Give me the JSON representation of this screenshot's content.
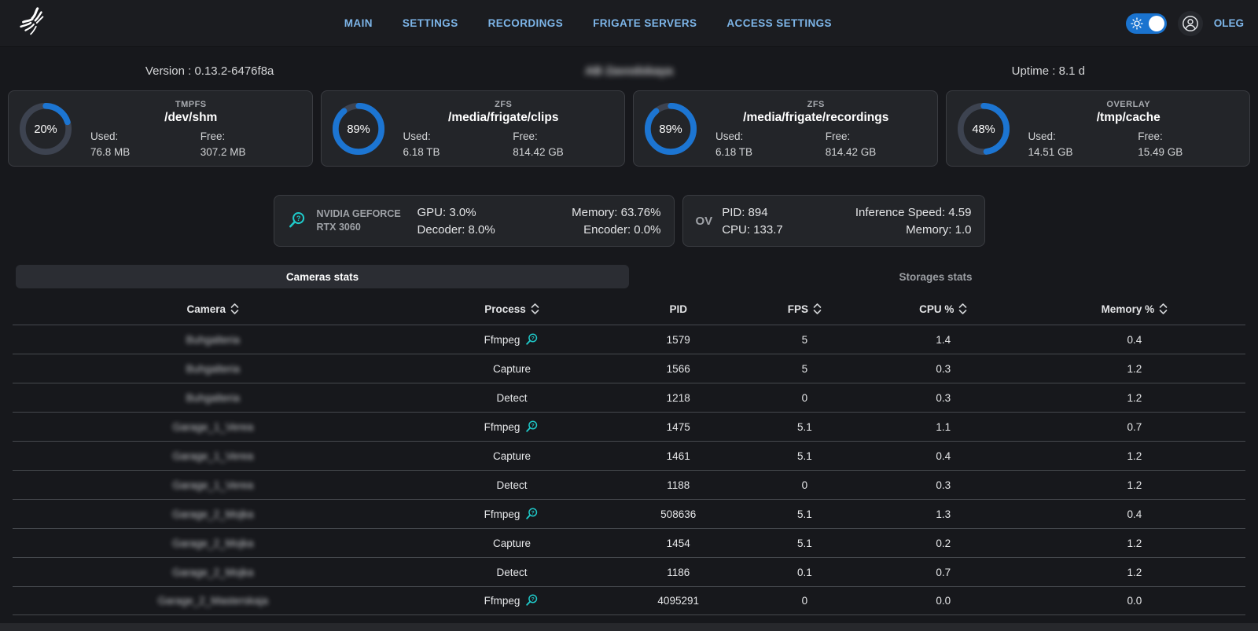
{
  "nav": {
    "items": [
      {
        "id": "main",
        "label": "MAIN"
      },
      {
        "id": "settings",
        "label": "SETTINGS"
      },
      {
        "id": "recordings",
        "label": "RECORDINGS"
      },
      {
        "id": "frigate-servers",
        "label": "FRIGATE SERVERS"
      },
      {
        "id": "access-settings",
        "label": "ACCESS SETTINGS"
      }
    ]
  },
  "user": {
    "name": "OLEG",
    "theme_toggle_on": true
  },
  "info_bar": {
    "version": "Version : 0.13.2-6476f8a",
    "server_name": "AB Zavodskaya",
    "server_name_blurred": true,
    "uptime": "Uptime : 8.1 d"
  },
  "storage_cards": [
    {
      "fs_type": "TMPFS",
      "mount": "/dev/shm",
      "percent": 20,
      "used_label": "Used:",
      "used": "76.8 MB",
      "free_label": "Free:",
      "free": "307.2 MB"
    },
    {
      "fs_type": "ZFS",
      "mount": "/media/frigate/clips",
      "percent": 89,
      "used_label": "Used:",
      "used": "6.18 TB",
      "free_label": "Free:",
      "free": "814.42 GB"
    },
    {
      "fs_type": "ZFS",
      "mount": "/media/frigate/recordings",
      "percent": 89,
      "used_label": "Used:",
      "used": "6.18 TB",
      "free_label": "Free:",
      "free": "814.42 GB"
    },
    {
      "fs_type": "OVERLAY",
      "mount": "/tmp/cache",
      "percent": 48,
      "used_label": "Used:",
      "used": "14.51 GB",
      "free_label": "Free:",
      "free": "15.49 GB"
    }
  ],
  "gpu_card": {
    "name_line1": "NVIDIA GEFORCE",
    "name_line2": "RTX 3060",
    "gpu": "GPU: 3.0%",
    "memory": "Memory: 63.76%",
    "decoder": "Decoder: 8.0%",
    "encoder": "Encoder: 0.0%"
  },
  "detector_card": {
    "label": "OV",
    "pid": "PID: 894",
    "inference": "Inference Speed: 4.59",
    "cpu": "CPU: 133.7",
    "memory": "Memory: 1.0"
  },
  "tabs": [
    {
      "id": "cameras",
      "label": "Cameras stats",
      "active": true
    },
    {
      "id": "storages",
      "label": "Storages stats",
      "active": false
    }
  ],
  "cameras_table": {
    "columns": [
      {
        "key": "camera",
        "label": "Camera",
        "sortable": true
      },
      {
        "key": "process",
        "label": "Process",
        "sortable": true
      },
      {
        "key": "pid",
        "label": "PID",
        "sortable": false
      },
      {
        "key": "fps",
        "label": "FPS",
        "sortable": true
      },
      {
        "key": "cpu",
        "label": "CPU %",
        "sortable": true
      },
      {
        "key": "memory",
        "label": "Memory %",
        "sortable": true
      }
    ],
    "rows": [
      {
        "camera": "Buhgalteria",
        "camera_blurred": true,
        "process": "Ffmpeg",
        "info_icon": true,
        "pid": "1579",
        "fps": "5",
        "cpu": "1.4",
        "memory": "0.4"
      },
      {
        "camera": "Buhgalteria",
        "camera_blurred": true,
        "process": "Capture",
        "info_icon": false,
        "pid": "1566",
        "fps": "5",
        "cpu": "0.3",
        "memory": "1.2"
      },
      {
        "camera": "Buhgalteria",
        "camera_blurred": true,
        "process": "Detect",
        "info_icon": false,
        "pid": "1218",
        "fps": "0",
        "cpu": "0.3",
        "memory": "1.2"
      },
      {
        "camera": "Garage_1_Verea",
        "camera_blurred": true,
        "process": "Ffmpeg",
        "info_icon": true,
        "pid": "1475",
        "fps": "5.1",
        "cpu": "1.1",
        "memory": "0.7"
      },
      {
        "camera": "Garage_1_Verea",
        "camera_blurred": true,
        "process": "Capture",
        "info_icon": false,
        "pid": "1461",
        "fps": "5.1",
        "cpu": "0.4",
        "memory": "1.2"
      },
      {
        "camera": "Garage_1_Verea",
        "camera_blurred": true,
        "process": "Detect",
        "info_icon": false,
        "pid": "1188",
        "fps": "0",
        "cpu": "0.3",
        "memory": "1.2"
      },
      {
        "camera": "Garage_2_Mojka",
        "camera_blurred": true,
        "process": "Ffmpeg",
        "info_icon": true,
        "pid": "508636",
        "fps": "5.1",
        "cpu": "1.3",
        "memory": "0.4"
      },
      {
        "camera": "Garage_2_Mojka",
        "camera_blurred": true,
        "process": "Capture",
        "info_icon": false,
        "pid": "1454",
        "fps": "5.1",
        "cpu": "0.2",
        "memory": "1.2"
      },
      {
        "camera": "Garage_2_Mojka",
        "camera_blurred": true,
        "process": "Detect",
        "info_icon": false,
        "pid": "1186",
        "fps": "0.1",
        "cpu": "0.7",
        "memory": "1.2"
      },
      {
        "camera": "Garage_2_Masterskaja",
        "camera_blurred": true,
        "process": "Ffmpeg",
        "info_icon": true,
        "pid": "4095291",
        "fps": "0",
        "cpu": "0.0",
        "memory": "0.0"
      }
    ]
  },
  "colors": {
    "accent_blue": "#1c75d2",
    "nav_blue": "#7db5e8",
    "teal": "#1fc9c9",
    "donut_track": "#3d4350"
  }
}
